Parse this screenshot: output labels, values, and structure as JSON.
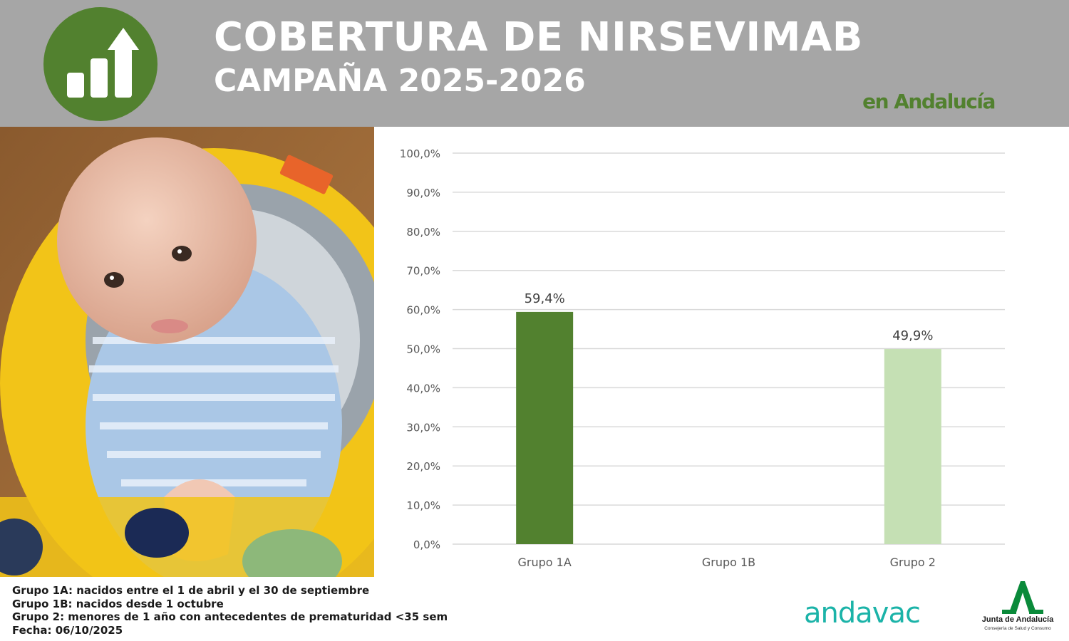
{
  "header": {
    "title": "COBERTURA DE NIRSEVIMAB",
    "subtitle": "CAMPAÑA 2025-2026",
    "region": "en Andalucía",
    "icon": "growth-chart-icon",
    "background_color": "#a6a6a6",
    "accent_color": "#52812f"
  },
  "chart_data": {
    "type": "bar",
    "categories": [
      "Grupo 1A",
      "Grupo 1B",
      "Grupo 2"
    ],
    "values": [
      59.4,
      null,
      49.9
    ],
    "value_labels": [
      "59,4%",
      "",
      "49,9%"
    ],
    "bar_colors": [
      "#52812f",
      "#52812f",
      "#c5e0b4"
    ],
    "ylim": [
      0,
      100
    ],
    "yticks": [
      "0,0%",
      "10,0%",
      "20,0%",
      "30,0%",
      "40,0%",
      "50,0%",
      "60,0%",
      "70,0%",
      "80,0%",
      "90,0%",
      "100,0%"
    ],
    "grid": true
  },
  "notes": [
    "Grupo 1A: nacidos entre el 1 de abril y el 30 de septiembre",
    "Grupo 1B: nacidos desde 1 octubre",
    "Grupo 2: menores de 1 año con antecedentes de prematuridad <35 sem",
    "Fecha: 06/10/2025"
  ],
  "logos": {
    "andavac": "andavac",
    "junta_name": "Junta de Andalucía",
    "junta_dept": "Consejería de Salud y Consumo"
  }
}
